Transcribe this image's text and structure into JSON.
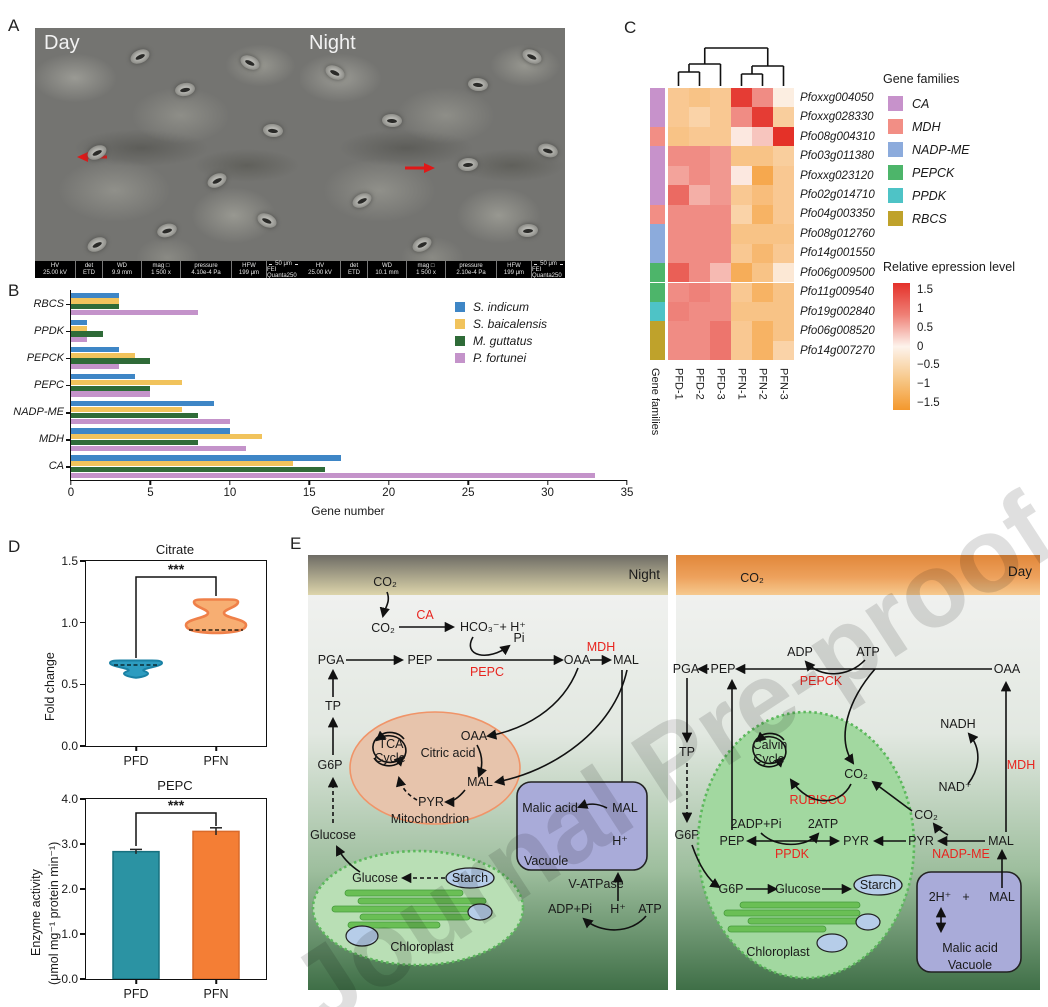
{
  "watermark": "Journal Pre-proof",
  "panel_labels": {
    "a": "A",
    "b": "B",
    "c": "C",
    "d": "D",
    "e": "E"
  },
  "panel_a": {
    "day": {
      "label": "Day",
      "meta_headers": [
        "HV",
        "det",
        "WD",
        "mag □",
        "pressure",
        "HFW"
      ],
      "meta_values": [
        "25.00 kV",
        "ETD",
        "9.9 mm",
        "1 500 x",
        "4.10e-4 Pa",
        "199 μm"
      ],
      "scale_bar": "50 μm",
      "instrument": "FEI Quanta250"
    },
    "night": {
      "label": "Night",
      "meta_headers": [
        "HV",
        "det",
        "WD",
        "mag □",
        "pressure",
        "HFW"
      ],
      "meta_values": [
        "25.00 kV",
        "ETD",
        "10.1 mm",
        "1 500 x",
        "2.10e-4 Pa",
        "199 μm"
      ],
      "scale_bar": "50 μm",
      "instrument": "FEI Quanta250"
    }
  },
  "chart_data": [
    {
      "id": "gene_number_bar",
      "type": "bar",
      "orientation": "horizontal",
      "categories": [
        "RBCS",
        "PPDK",
        "PEPCK",
        "PEPC",
        "NADP-ME",
        "MDH",
        "CA"
      ],
      "series": [
        {
          "name": "S. indicum",
          "color": "#3e86c6",
          "values": [
            3,
            1,
            3,
            4,
            9,
            10,
            17
          ]
        },
        {
          "name": "S. baicalensis",
          "color": "#f1c35c",
          "values": [
            3,
            1,
            4,
            7,
            7,
            12,
            14
          ]
        },
        {
          "name": "M. guttatus",
          "color": "#2f6b38",
          "values": [
            3,
            2,
            5,
            5,
            8,
            8,
            16
          ]
        },
        {
          "name": "P. fortunei",
          "color": "#c493ca",
          "values": [
            8,
            1,
            3,
            5,
            10,
            11,
            33
          ]
        }
      ],
      "xlabel": "Gene number",
      "xlim": [
        0,
        35
      ],
      "xticks": [
        0,
        5,
        10,
        15,
        20,
        25,
        30,
        35
      ],
      "legend_position": "upper right"
    },
    {
      "id": "expression_heatmap",
      "type": "heatmap",
      "columns": [
        "PFD-1",
        "PFD-2",
        "PFD-3",
        "PFN-1",
        "PFN-2",
        "PFN-3"
      ],
      "row_axis_label": "Gene families",
      "legend_title": "Gene families",
      "families_legend": [
        "CA",
        "MDH",
        "NADP-ME",
        "PEPCK",
        "PPDK",
        "RBCS"
      ],
      "family_colors": {
        "CA": "#c792cb",
        "MDH": "#f28e85",
        "NADP-ME": "#8cabdc",
        "PEPCK": "#4db56a",
        "PPDK": "#4ec3c6",
        "RBCS": "#bfa22b"
      },
      "colorbar": {
        "title": "Relative epression level",
        "ticks": [
          1.5,
          1,
          0.5,
          0,
          -0.5,
          -1,
          -1.5
        ],
        "range": [
          -1.7,
          1.7
        ],
        "high_color": "#e4312a",
        "mid_color": "#fdf3ec",
        "low_color": "#f4982c"
      },
      "rows": [
        {
          "gene": "Pfoxxg004050",
          "family": "CA",
          "values": [
            -0.8,
            -0.9,
            -0.8,
            1.6,
            0.9,
            -0.1
          ]
        },
        {
          "gene": "Pfoxxg028330",
          "family": "CA",
          "values": [
            -0.8,
            -0.6,
            -0.8,
            0.9,
            1.6,
            -0.7
          ]
        },
        {
          "gene": "Pfo08g004310",
          "family": "MDH",
          "values": [
            -0.9,
            -0.8,
            -0.8,
            0.1,
            0.4,
            1.7
          ]
        },
        {
          "gene": "Pfo03g011380",
          "family": "CA",
          "values": [
            0.9,
            0.9,
            0.8,
            -0.9,
            -0.9,
            -0.7
          ]
        },
        {
          "gene": "Pfoxxg023120",
          "family": "CA",
          "values": [
            0.7,
            0.9,
            0.8,
            0.1,
            -1.4,
            -0.8
          ]
        },
        {
          "gene": "Pfo02g014710",
          "family": "CA",
          "values": [
            1.2,
            0.6,
            0.8,
            -0.8,
            -1.0,
            -0.8
          ]
        },
        {
          "gene": "Pfo04g003350",
          "family": "MDH",
          "values": [
            0.9,
            0.9,
            0.9,
            -0.6,
            -1.2,
            -0.8
          ]
        },
        {
          "gene": "Pfo08g012760",
          "family": "NADP-ME",
          "values": [
            0.9,
            0.9,
            0.9,
            -0.9,
            -0.9,
            -0.9
          ]
        },
        {
          "gene": "Pfo14g001550",
          "family": "NADP-ME",
          "values": [
            0.9,
            0.9,
            0.9,
            -0.8,
            -1.1,
            -0.8
          ]
        },
        {
          "gene": "Pfo06g009500",
          "family": "PEPCK",
          "values": [
            1.3,
            0.9,
            0.5,
            -1.3,
            -0.9,
            -0.2
          ]
        },
        {
          "gene": "Pfo11g009540",
          "family": "PEPCK",
          "values": [
            0.9,
            1.0,
            0.9,
            -0.8,
            -1.2,
            -0.9
          ]
        },
        {
          "gene": "Pfo19g002840",
          "family": "PPDK",
          "values": [
            1.0,
            0.9,
            0.9,
            -0.9,
            -0.9,
            -0.9
          ]
        },
        {
          "gene": "Pfo06g008520",
          "family": "RBCS",
          "values": [
            0.9,
            0.9,
            1.1,
            -0.8,
            -1.2,
            -0.9
          ]
        },
        {
          "gene": "Pfo14g007270",
          "family": "RBCS",
          "values": [
            0.9,
            0.9,
            1.1,
            -0.8,
            -1.2,
            -0.6
          ]
        }
      ]
    },
    {
      "id": "citrate_violin",
      "type": "violin",
      "title": "Citrate",
      "ylabel": "Fold change",
      "ylim": [
        0,
        1.5
      ],
      "yticks": [
        "0.0",
        "0.5",
        "1.0",
        "1.5"
      ],
      "groups": [
        {
          "name": "PFD",
          "color": "#2d9cc0",
          "median": 0.65,
          "range": [
            0.55,
            0.68
          ]
        },
        {
          "name": "PFN",
          "color": "#f7ae72",
          "median": 0.94,
          "range": [
            0.9,
            1.18
          ]
        }
      ],
      "significance": "***"
    },
    {
      "id": "pepc_bar",
      "type": "bar",
      "title": "PEPC",
      "ylabel_line1": "Enzyme activity",
      "ylabel_line2": "(μmol mg⁻¹ protein min⁻¹)",
      "ylim": [
        0,
        4
      ],
      "yticks": [
        "0.0",
        "1.0",
        "2.0",
        "3.0",
        "4.0"
      ],
      "categories": [
        "PFD",
        "PFN"
      ],
      "values": [
        2.83,
        3.28
      ],
      "errors": [
        0.05,
        0.08
      ],
      "colors": [
        "#2b93a3",
        "#f47e35"
      ],
      "edge_colors": [
        "#17707e",
        "#d96a2a"
      ],
      "significance": "***"
    }
  ],
  "panel_e": {
    "night": {
      "header": "Night",
      "co2_air": "CO₂",
      "co2_in": "CO₂",
      "ca": "CA",
      "hco3": "HCO₃⁻+ H⁺",
      "pi": "Pi",
      "pga": "PGA",
      "pep": "PEP",
      "pepc": "PEPC",
      "oaa": "OAA",
      "mdh": "MDH",
      "mal": "MAL",
      "tp": "TP",
      "g6p": "G6P",
      "glucose_out": "Glucose",
      "mito_tca1": "TCA",
      "mito_tca2": "Cycle",
      "mito_citric": "Citric acid",
      "mito_oaa": "OAA",
      "mito_mal": "MAL",
      "mito_pyr": "PYR",
      "mito_label": "Mitochondrion",
      "vac_malic": "Malic acid",
      "vac_mal": "MAL",
      "vac_h": "H⁺",
      "vac_label": "Vacuole",
      "vatpase": "V-ATPase",
      "adp_pi": "ADP+Pi",
      "h_plus": "H⁺",
      "atp": "ATP",
      "chl_glucose": "Glucose",
      "chl_starch": "Starch",
      "chl_label": "Chloroplast"
    },
    "day": {
      "header": "Day",
      "co2_air": "CO₂",
      "adp": "ADP",
      "atp": "ATP",
      "pga": "PGA",
      "pep": "PEP",
      "pepck": "PEPCK",
      "oaa": "OAA",
      "tp": "TP",
      "g6p_out": "G6P",
      "nadh": "NADH",
      "nad": "NAD⁺",
      "mdh": "MDH",
      "calvin1": "Calvin",
      "calvin2": "Cycle",
      "co2_in": "CO₂",
      "rubisco": "RUBISCO",
      "adp2": "2ADP+Pi",
      "atp2": "2ATP",
      "pep_in": "PEP",
      "ppdk": "PPDK",
      "pyr_in": "PYR",
      "pyr_cyt": "PYR",
      "nadpme": "NADP-ME",
      "mal_cyt": "MAL",
      "co2_cyt": "CO₂",
      "g6p_in": "G6P",
      "glucose": "Glucose",
      "starch": "Starch",
      "chl_label": "Chloroplast",
      "vac_h2": "2H⁺",
      "vac_plus": "+",
      "vac_mal": "MAL",
      "vac_malic": "Malic acid",
      "vac_label": "Vacuole"
    }
  }
}
